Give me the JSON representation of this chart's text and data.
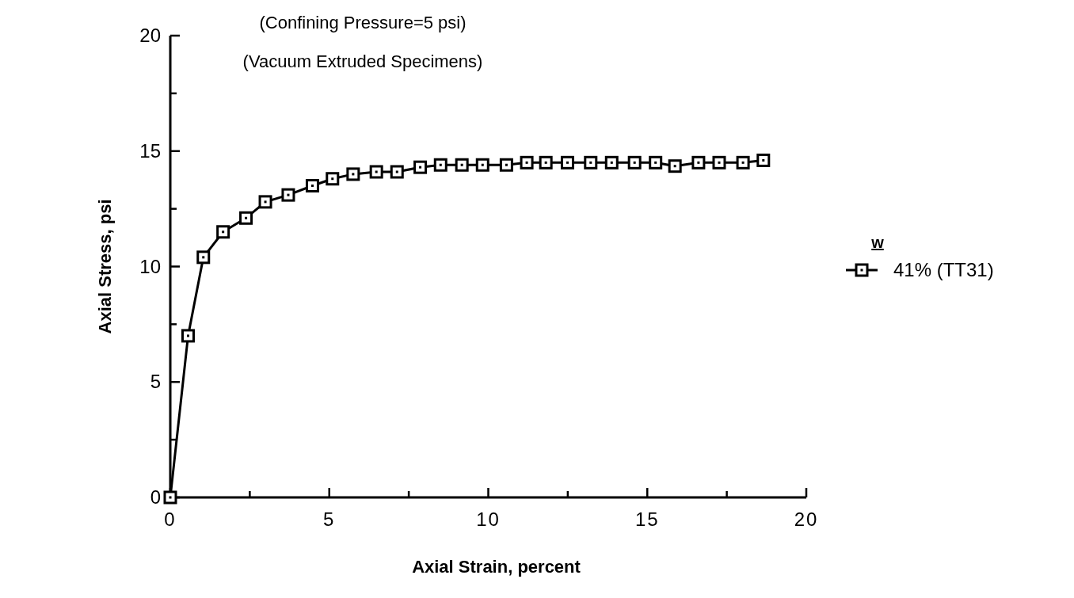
{
  "chart_data": {
    "type": "line",
    "title": "(Confining Pressure=5 psi)",
    "subtitle": "(Vacuum Extruded Specimens)",
    "xlabel": "Axial Strain, percent",
    "ylabel": "Axial Stress, psi",
    "legend_title": "w",
    "legend": "right",
    "marker": "square",
    "line_style": "solid",
    "grid": false,
    "xlim": [
      0,
      20
    ],
    "ylim": [
      0,
      20
    ],
    "xticks": [
      0,
      {
        "value": 2.5,
        "label": null
      },
      5,
      {
        "value": 7.5,
        "label": null
      },
      10,
      {
        "value": 12.5,
        "label": null
      },
      15,
      {
        "value": 17.5,
        "label": null
      },
      20
    ],
    "yticks": [
      0,
      {
        "value": 2.5,
        "label": null
      },
      5,
      {
        "value": 7.5,
        "label": null
      },
      10,
      {
        "value": 12.5,
        "label": null
      },
      15,
      {
        "value": 17.5,
        "label": null
      },
      20
    ],
    "series": [
      {
        "name": "41% (TT31)",
        "color": "#000000",
        "x": [
          0,
          0.56,
          1.04,
          1.66,
          2.38,
          2.99,
          3.71,
          4.47,
          5.1,
          5.75,
          6.48,
          7.13,
          7.86,
          8.5,
          9.17,
          9.82,
          10.57,
          11.21,
          11.81,
          12.49,
          13.22,
          13.88,
          14.6,
          15.26,
          15.87,
          16.61,
          17.26,
          18.01,
          18.65
        ],
        "values": [
          0,
          7.0,
          10.4,
          11.5,
          12.1,
          12.8,
          13.1,
          13.5,
          13.8,
          14.0,
          14.1,
          14.1,
          14.3,
          14.4,
          14.4,
          14.4,
          14.4,
          14.5,
          14.5,
          14.5,
          14.5,
          14.5,
          14.5,
          14.5,
          14.35,
          14.5,
          14.5,
          14.5,
          14.6
        ]
      }
    ]
  }
}
